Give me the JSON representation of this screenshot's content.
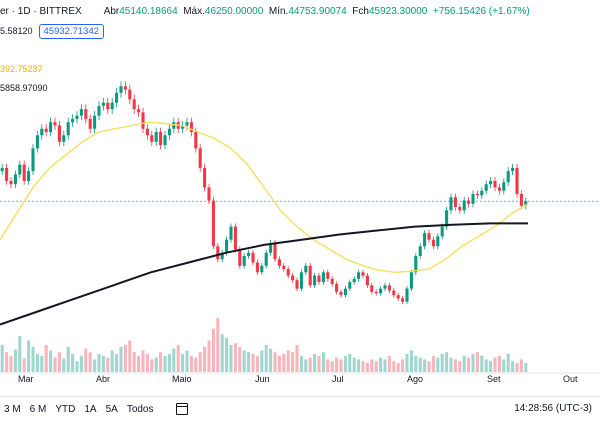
{
  "header": {
    "symbol": "er · 1D · BITTREX",
    "ohlc": [
      {
        "label": "Abr",
        "value": "45140.18664"
      },
      {
        "label": "Máx.",
        "value": "46250.00000"
      },
      {
        "label": "Mín.",
        "value": "44753.90074"
      },
      {
        "label": "Fch",
        "value": "45923.30000"
      }
    ],
    "change": "+756.15426 (+1.67%)",
    "prev_value": "5.58120",
    "current_price": "45932.71342"
  },
  "ma_labels": {
    "ma1": "392.75237",
    "ma2": "5858.97090"
  },
  "time_axis": [
    "Mar",
    "Abr",
    "Maio",
    "Jun",
    "Jul",
    "Ago",
    "Set",
    "Out"
  ],
  "bottom_bar": {
    "ranges": [
      "3 M",
      "6 M",
      "YTD",
      "1A",
      "5A",
      "Todos"
    ],
    "time": "14:28:56 (UTC-3)"
  },
  "colors": {
    "up": "#089981",
    "down": "#f23645",
    "ma1": "#f2e15c",
    "ma2": "#131722",
    "accent": "#2962ff"
  },
  "chart_data": {
    "type": "candlestick",
    "x_labels": [
      "Mar",
      "Abr",
      "Maio",
      "Jun",
      "Jul",
      "Ago",
      "Set",
      "Out"
    ],
    "series": [
      {
        "name": "close",
        "description": "daily close (approx.)",
        "values": [
          51000,
          49000,
          48500,
          50000,
          51500,
          49000,
          50500,
          54000,
          56000,
          57000,
          56500,
          58000,
          57500,
          55000,
          56000,
          58000,
          58500,
          59000,
          60000,
          58500,
          57000,
          59000,
          60500,
          61000,
          60000,
          61000,
          62500,
          63500,
          63000,
          61500,
          60000,
          59500,
          57000,
          56000,
          55000,
          56500,
          54500,
          56000,
          57000,
          58000,
          57000,
          57500,
          58000,
          56500,
          54000,
          51000,
          48000,
          46000,
          39000,
          37000,
          38000,
          40000,
          42000,
          38500,
          36000,
          37500,
          38000,
          36500,
          35000,
          36000,
          38000,
          39500,
          37000,
          36000,
          35500,
          34500,
          33800,
          32500,
          35000,
          36000,
          33000,
          34500,
          33500,
          35000,
          34000,
          33200,
          32000,
          31500,
          32500,
          33500,
          34000,
          35000,
          34500,
          33000,
          32000,
          31800,
          32500,
          33000,
          32200,
          31500,
          31000,
          30500,
          32500,
          35000,
          37500,
          39000,
          41000,
          40000,
          39000,
          40500,
          42000,
          44500,
          46500,
          45000,
          44500,
          46000,
          45500,
          47000,
          46800,
          47500,
          48500,
          49000,
          48000,
          47500,
          48800,
          50500,
          51000,
          47000,
          45200,
          45900
        ]
      },
      {
        "name": "ma1",
        "description": "yellow moving average (approx.)",
        "values": [
          40000,
          44000,
          48000,
          51000,
          53000,
          55000,
          56500,
          57000,
          57500,
          58000,
          57800,
          57500,
          56500,
          55500,
          54000,
          51500,
          48000,
          44500,
          42000,
          40000,
          38500,
          37000,
          36000,
          35300,
          35000,
          35200,
          35500,
          37000,
          39000,
          40500,
          42000,
          44000,
          45500
        ]
      },
      {
        "name": "ma2",
        "description": "black moving average (approx.)",
        "values": [
          27000,
          29000,
          31000,
          33000,
          35000,
          36500,
          38000,
          39200,
          40000,
          40800,
          41400,
          42000,
          42300,
          42500,
          42500
        ]
      },
      {
        "name": "volume",
        "description": "volume bars (relative)",
        "values": [
          30,
          22,
          18,
          25,
          40,
          15,
          35,
          28,
          20,
          18,
          30,
          24,
          16,
          22,
          15,
          28,
          20,
          12,
          18,
          26,
          22,
          14,
          20,
          18,
          16,
          24,
          20,
          28,
          30,
          35,
          22,
          18,
          24,
          20,
          14,
          16,
          22,
          18,
          20,
          26,
          30,
          20,
          24,
          18,
          16,
          22,
          28,
          35,
          48,
          60,
          42,
          38,
          30,
          32,
          28,
          24,
          22,
          20,
          18,
          24,
          30,
          26,
          22,
          18,
          20,
          24,
          22,
          30,
          18,
          14,
          16,
          20,
          18,
          22,
          14,
          12,
          16,
          14,
          18,
          20,
          16,
          14,
          12,
          10,
          14,
          12,
          16,
          14,
          18,
          12,
          10,
          14,
          20,
          24,
          18,
          16,
          14,
          12,
          18,
          16,
          20,
          22,
          16,
          14,
          12,
          18,
          16,
          20,
          22,
          18,
          14,
          12,
          16,
          18,
          14,
          20,
          12,
          10,
          14,
          10
        ]
      }
    ]
  }
}
